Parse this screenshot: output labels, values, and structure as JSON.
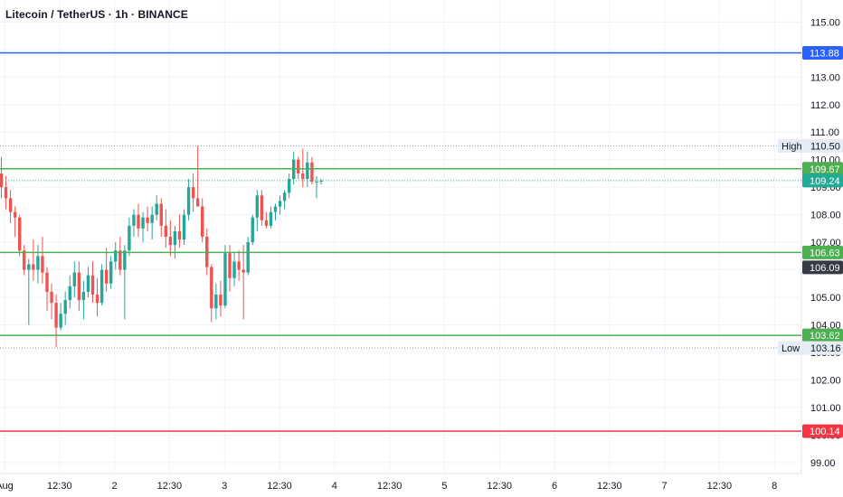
{
  "header": {
    "title": "Litecoin / TetherUS · 1h · BINANCE"
  },
  "colors": {
    "up": "#26a69a",
    "down": "#ef5350",
    "blue_line": "#2962ff",
    "green_line": "#4caf50",
    "red_line": "#f23645",
    "last_price": "#22ab94",
    "dark_tag": "#363a45",
    "grid": "#f0f3fa",
    "label_bg": "#e6ecf5"
  },
  "chart_data": {
    "type": "candlestick",
    "title": "Litecoin / TetherUS · 1h · BINANCE",
    "ylim": [
      98.6,
      115.8
    ],
    "y_ticks": [
      99,
      100,
      101,
      102,
      103,
      104,
      105,
      106,
      107,
      108,
      109,
      110,
      111,
      112,
      113,
      114,
      115
    ],
    "x_ticks": [
      "Aug",
      "12:30",
      "2",
      "12:30",
      "3",
      "12:30",
      "4",
      "12:30",
      "5",
      "12:30",
      "6",
      "12:30",
      "7",
      "12:30",
      "8"
    ],
    "horizontal_lines": [
      {
        "name": "blue-level-line",
        "value": 113.88,
        "label": "113.88",
        "color": "#2962ff",
        "style": "solid"
      },
      {
        "name": "green-level-line-top",
        "value": 109.67,
        "label": "109.67",
        "color": "#4caf50",
        "style": "solid"
      },
      {
        "name": "green-level-line-mid",
        "value": 106.63,
        "label": "106.63",
        "color": "#4caf50",
        "style": "solid"
      },
      {
        "name": "green-level-line-bottom",
        "value": 103.62,
        "label": "103.62",
        "color": "#4caf50",
        "style": "solid"
      },
      {
        "name": "red-level-line",
        "value": 100.14,
        "label": "100.14",
        "color": "#f23645",
        "style": "solid"
      }
    ],
    "high": {
      "label": "High",
      "value": 110.5,
      "text": "110.50"
    },
    "low": {
      "label": "Low",
      "value": 103.16,
      "text": "103.16"
    },
    "last_price": {
      "value": 109.24,
      "text": "109.24"
    },
    "extra_tag": {
      "value": 106.09,
      "text": "106.09"
    },
    "candles": [
      [
        109.5,
        110.1,
        108.6,
        109.0
      ],
      [
        109.0,
        109.4,
        108.2,
        108.6
      ],
      [
        108.6,
        108.9,
        107.7,
        108.1
      ],
      [
        108.1,
        108.3,
        107.2,
        107.9
      ],
      [
        107.9,
        108.0,
        106.5,
        106.7
      ],
      [
        106.7,
        106.9,
        105.8,
        106.0
      ],
      [
        106.0,
        106.4,
        104.0,
        106.2
      ],
      [
        106.2,
        107.1,
        105.6,
        106.0
      ],
      [
        106.0,
        106.9,
        105.5,
        106.5
      ],
      [
        106.5,
        107.2,
        105.5,
        105.9
      ],
      [
        105.9,
        106.1,
        104.5,
        105.2
      ],
      [
        105.2,
        105.5,
        104.2,
        104.8
      ],
      [
        104.8,
        105.1,
        103.2,
        103.9
      ],
      [
        103.9,
        104.8,
        103.8,
        104.4
      ],
      [
        104.4,
        105.2,
        104.0,
        104.9
      ],
      [
        104.9,
        105.8,
        104.6,
        105.4
      ],
      [
        105.4,
        106.3,
        105.0,
        105.9
      ],
      [
        105.9,
        106.3,
        104.5,
        104.9
      ],
      [
        104.9,
        105.6,
        104.2,
        105.2
      ],
      [
        105.2,
        106.1,
        105.0,
        105.8
      ],
      [
        105.8,
        106.3,
        104.8,
        105.1
      ],
      [
        105.1,
        105.7,
        104.3,
        104.8
      ],
      [
        104.8,
        106.2,
        104.7,
        106.0
      ],
      [
        106.0,
        106.8,
        105.2,
        105.5
      ],
      [
        105.5,
        106.5,
        105.3,
        106.3
      ],
      [
        106.3,
        107.0,
        106.0,
        106.7
      ],
      [
        106.7,
        107.2,
        105.8,
        106.0
      ],
      [
        106.0,
        106.9,
        104.2,
        106.7
      ],
      [
        106.7,
        107.9,
        106.5,
        107.6
      ],
      [
        107.6,
        108.2,
        107.2,
        108.0
      ],
      [
        108.0,
        108.4,
        107.2,
        107.5
      ],
      [
        107.5,
        108.1,
        107.0,
        107.9
      ],
      [
        107.9,
        108.3,
        107.4,
        107.7
      ],
      [
        107.7,
        108.3,
        107.1,
        108.0
      ],
      [
        108.0,
        108.7,
        107.8,
        108.4
      ],
      [
        108.4,
        108.6,
        107.2,
        107.6
      ],
      [
        107.6,
        108.2,
        106.8,
        107.2
      ],
      [
        107.2,
        107.8,
        106.5,
        106.9
      ],
      [
        106.9,
        107.6,
        106.4,
        107.4
      ],
      [
        107.4,
        108.0,
        106.8,
        107.1
      ],
      [
        107.1,
        108.2,
        106.9,
        108.0
      ],
      [
        108.0,
        109.3,
        107.8,
        109.0
      ],
      [
        109.0,
        109.5,
        108.1,
        108.6
      ],
      [
        108.6,
        110.5,
        108.3,
        108.3
      ],
      [
        108.3,
        108.6,
        107.0,
        107.2
      ],
      [
        107.2,
        107.5,
        105.8,
        106.1
      ],
      [
        106.1,
        106.2,
        104.1,
        104.6
      ],
      [
        104.6,
        105.5,
        104.2,
        105.1
      ],
      [
        105.1,
        105.6,
        104.3,
        104.7
      ],
      [
        104.7,
        106.9,
        104.6,
        106.6
      ],
      [
        106.6,
        106.9,
        105.2,
        105.7
      ],
      [
        105.7,
        106.6,
        105.4,
        106.3
      ],
      [
        106.3,
        106.7,
        105.6,
        106.0
      ],
      [
        106.0,
        106.9,
        104.2,
        105.9
      ],
      [
        105.9,
        107.2,
        105.8,
        107.0
      ],
      [
        107.0,
        108.0,
        106.9,
        107.9
      ],
      [
        107.9,
        108.9,
        107.4,
        108.7
      ],
      [
        108.7,
        108.9,
        107.6,
        107.8
      ],
      [
        107.8,
        108.1,
        107.5,
        107.6
      ],
      [
        107.6,
        108.3,
        107.5,
        108.1
      ],
      [
        108.1,
        108.4,
        107.8,
        108.3
      ],
      [
        108.3,
        108.7,
        108.0,
        108.5
      ],
      [
        108.5,
        108.9,
        108.2,
        108.8
      ],
      [
        108.8,
        109.5,
        108.6,
        109.3
      ],
      [
        109.3,
        110.3,
        109.1,
        110.0
      ],
      [
        110.0,
        110.1,
        109.3,
        109.5
      ],
      [
        109.5,
        110.4,
        109.0,
        109.3
      ],
      [
        109.3,
        110.3,
        109.0,
        109.9
      ],
      [
        109.9,
        110.1,
        109.1,
        109.2
      ],
      [
        109.2,
        109.4,
        108.6,
        109.2
      ],
      [
        109.2,
        109.3,
        109.1,
        109.24
      ]
    ]
  }
}
